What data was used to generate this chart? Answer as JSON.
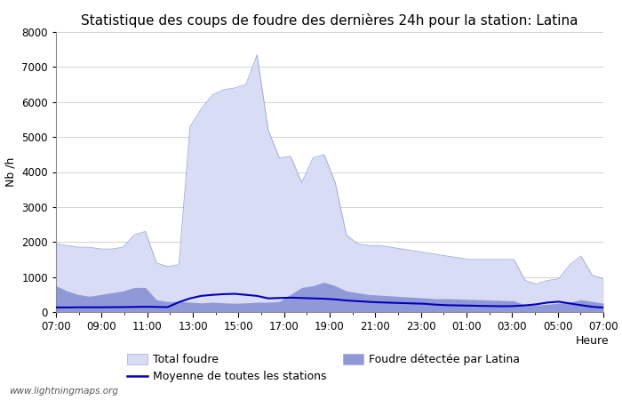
{
  "title": "Statistique des coups de foudre des dernières 24h pour la station: Latina",
  "xlabel": "Heure",
  "ylabel": "Nb /h",
  "watermark": "www.lightningmaps.org",
  "ylim": [
    0,
    8000
  ],
  "yticks": [
    0,
    1000,
    2000,
    3000,
    4000,
    5000,
    6000,
    7000,
    8000
  ],
  "xtick_labels": [
    "07:00",
    "09:00",
    "11:00",
    "13:00",
    "15:00",
    "17:00",
    "19:00",
    "21:00",
    "23:00",
    "01:00",
    "03:00",
    "05:00",
    "07:00"
  ],
  "color_total": "#d8dcf5",
  "color_latina": "#9099d8",
  "color_moyenne": "#0000bb",
  "color_moyenne_thin": "#7788cc",
  "total_foudre": [
    1950,
    1900,
    1850,
    1850,
    1800,
    1800,
    1850,
    2200,
    2300,
    1400,
    1300,
    1350,
    5300,
    5800,
    6200,
    6350,
    6400,
    6500,
    7350,
    5200,
    4400,
    4450,
    3700,
    4400,
    4500,
    3700,
    2200,
    1950,
    1900,
    1900,
    1850,
    1800,
    1750,
    1700,
    1650,
    1600,
    1550,
    1500,
    1500,
    1500,
    1500,
    1500,
    900,
    800,
    900,
    950,
    1350,
    1600,
    1050,
    950
  ],
  "latina_foudre": [
    750,
    600,
    500,
    450,
    500,
    550,
    600,
    700,
    700,
    350,
    300,
    300,
    280,
    260,
    280,
    260,
    250,
    260,
    280,
    280,
    300,
    500,
    700,
    750,
    850,
    750,
    600,
    550,
    500,
    480,
    460,
    440,
    420,
    400,
    380,
    380,
    370,
    360,
    350,
    340,
    330,
    320,
    200,
    200,
    220,
    250,
    280,
    350,
    300,
    250
  ],
  "moyenne": [
    130,
    130,
    135,
    135,
    135,
    138,
    140,
    145,
    150,
    145,
    140,
    280,
    390,
    460,
    490,
    510,
    520,
    490,
    460,
    390,
    400,
    410,
    400,
    390,
    380,
    360,
    330,
    310,
    290,
    275,
    265,
    255,
    245,
    235,
    210,
    195,
    188,
    182,
    175,
    170,
    165,
    170,
    190,
    220,
    270,
    295,
    245,
    195,
    150,
    125
  ],
  "n_points": 50,
  "legend_total_label": "Total foudre",
  "legend_latina_label": "Foudre détectée par Latina",
  "legend_moyenne_label": "Moyenne de toutes les stations",
  "title_fontsize": 11,
  "axis_fontsize": 9,
  "tick_fontsize": 8.5,
  "legend_fontsize": 9,
  "bg_color": "#ffffff",
  "plot_bg_color": "#ffffff"
}
